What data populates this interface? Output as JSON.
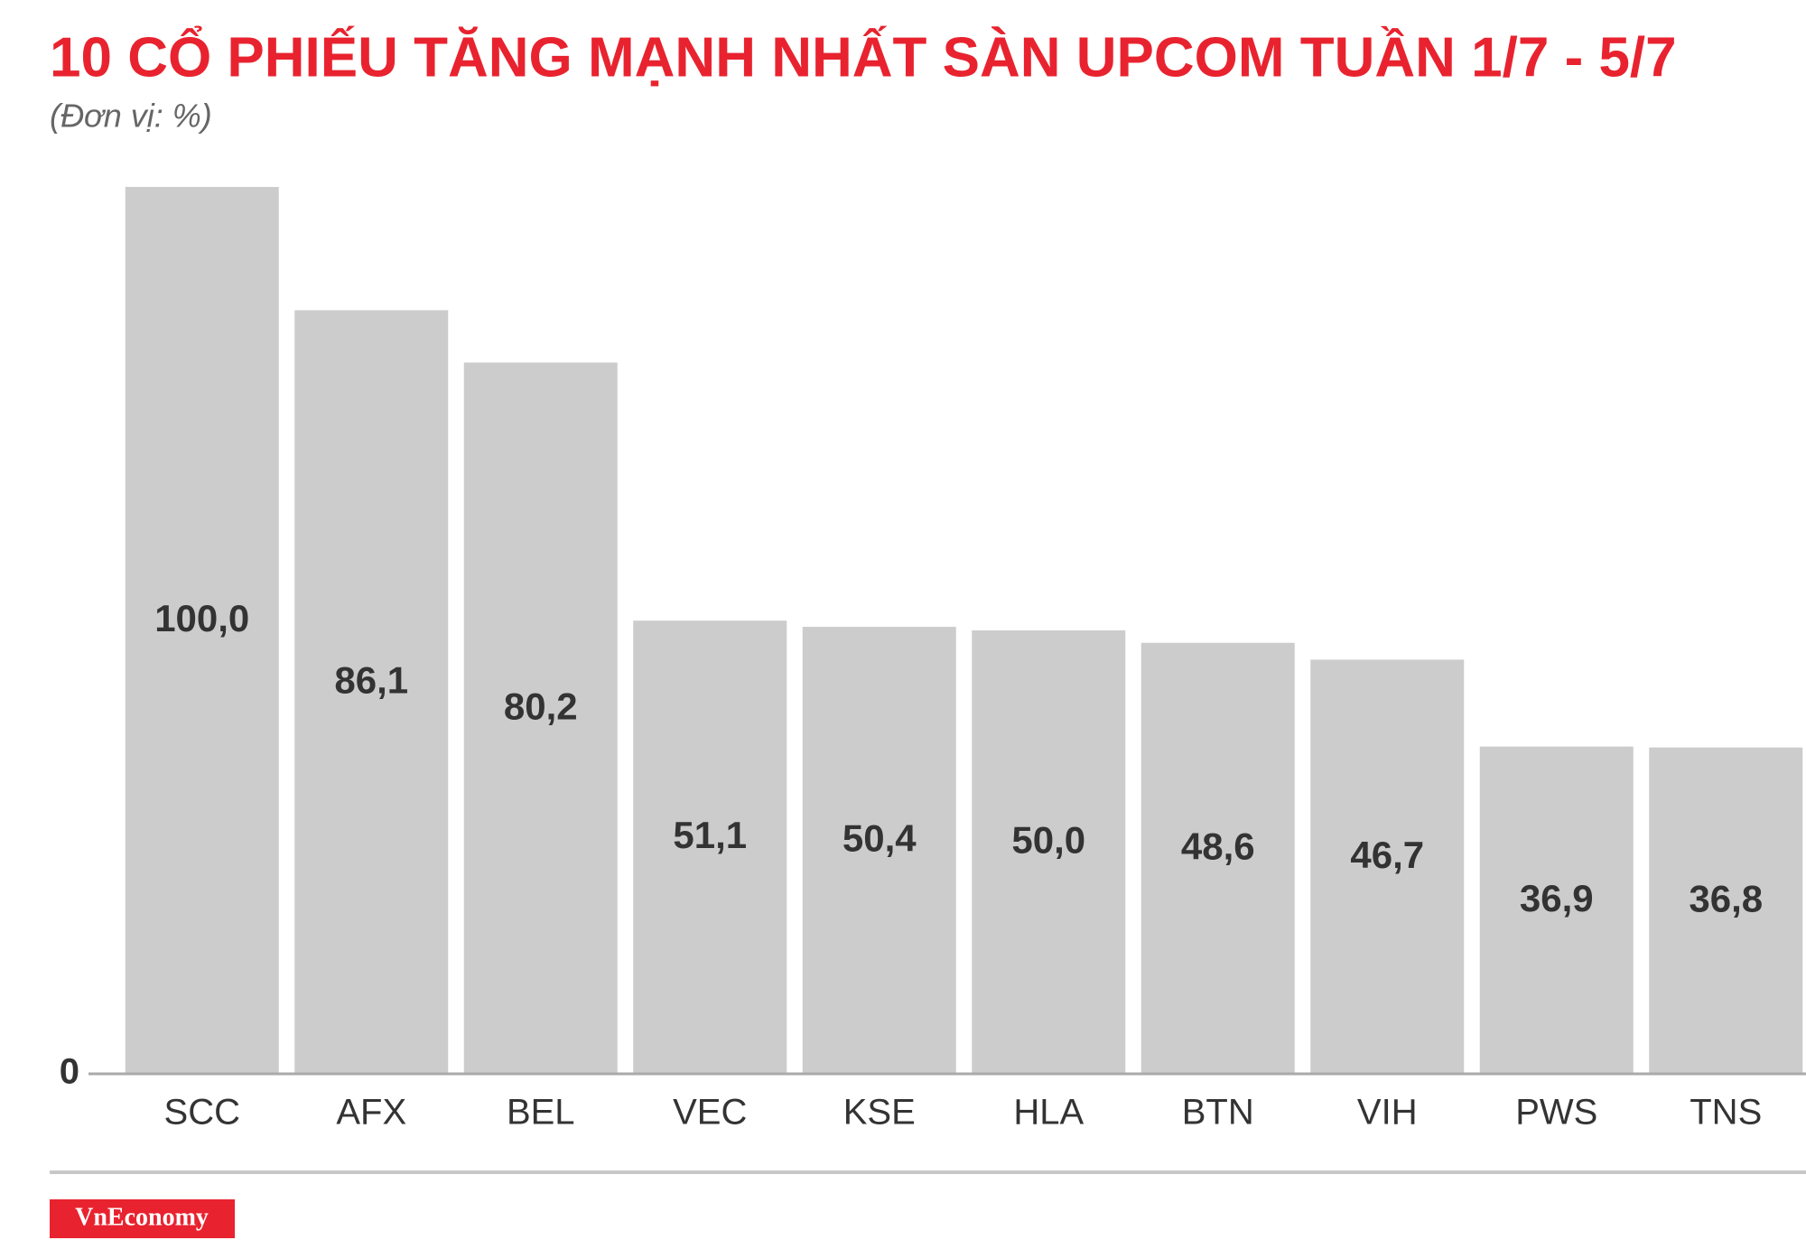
{
  "chart_data": {
    "type": "bar",
    "title": "10 CỔ PHIẾU TĂNG MẠNH NHẤT SÀN UPCOM TUẦN 1/7 - 5/7",
    "subtitle": "(Đơn vị: %)",
    "categories": [
      "SCC",
      "AFX",
      "BEL",
      "VEC",
      "KSE",
      "HLA",
      "BTN",
      "VIH",
      "PWS",
      "TNS"
    ],
    "values": [
      100.0,
      86.1,
      80.2,
      51.1,
      50.4,
      50.0,
      48.6,
      46.7,
      36.9,
      36.8
    ],
    "value_labels": [
      "100,0",
      "86,1",
      "80,2",
      "51,1",
      "50,4",
      "50,0",
      "48,6",
      "46,7",
      "36,9",
      "36,8"
    ],
    "color": "#cdcccd",
    "ylim": [
      0,
      100
    ],
    "yticks": [
      0
    ],
    "grid": false,
    "source": "VnEconomy"
  }
}
